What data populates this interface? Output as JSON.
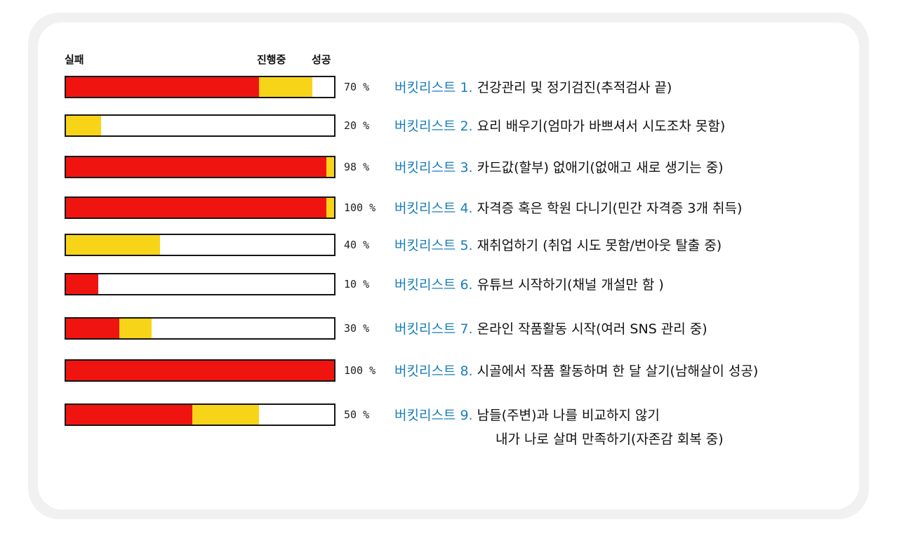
{
  "legend": {
    "fail": "실패",
    "progress": "진행중",
    "success": "성공"
  },
  "colors": {
    "fail": "#f01410",
    "progress": "#f8d418",
    "success": "#ffffff",
    "tag": "#1a7fb8"
  },
  "items": [
    {
      "percent_label": "70 %",
      "tag": "버킷리스트 1.",
      "text": "건강관리 및 정기검진(추적검사 끝)",
      "fail": 0.72,
      "progress": 0.2
    },
    {
      "percent_label": "20 %",
      "tag": "버킷리스트 2.",
      "text": "요리 배우기(엄마가 바쁘셔서 시도조차 못함)",
      "fail": 0.0,
      "progress": 0.13
    },
    {
      "percent_label": "98 %",
      "tag": "버킷리스트 3.",
      "text": "카드값(할부) 없애기(없애고 새로 생기는 중)",
      "fail": 0.97,
      "progress": 0.03
    },
    {
      "percent_label": "100 %",
      "tag": "버킷리스트 4.",
      "text": "자격증 혹은 학원 다니기(민간 자격증 3개 취득)",
      "fail": 0.97,
      "progress": 0.03
    },
    {
      "percent_label": "40 %",
      "tag": "버킷리스트 5.",
      "text": "재취업하기 (취업 시도 못함/번아웃 탈출 중)",
      "fail": 0.0,
      "progress": 0.35
    },
    {
      "percent_label": "10 %",
      "tag": "버킷리스트 6.",
      "text": "유튜브 시작하기(채널 개설만 함 )",
      "fail": 0.12,
      "progress": 0.0
    },
    {
      "percent_label": "30 %",
      "tag": "버킷리스트 7.",
      "text": "온라인 작품활동 시작(여러 SNS 관리 중)",
      "fail": 0.2,
      "progress": 0.12
    },
    {
      "percent_label": "100 %",
      "tag": "버킷리스트 8.",
      "text": "시골에서 작품 활동하며 한 달 살기(남해살이 성공)",
      "fail": 1.0,
      "progress": 0.0
    },
    {
      "percent_label": "50 %",
      "tag": "버킷리스트 9.",
      "text": "남들(주변)과 나를 비교하지 않기",
      "text2": "내가 나로 살며 만족하기(자존감 회복 중)",
      "fail": 0.47,
      "progress": 0.25
    }
  ]
}
